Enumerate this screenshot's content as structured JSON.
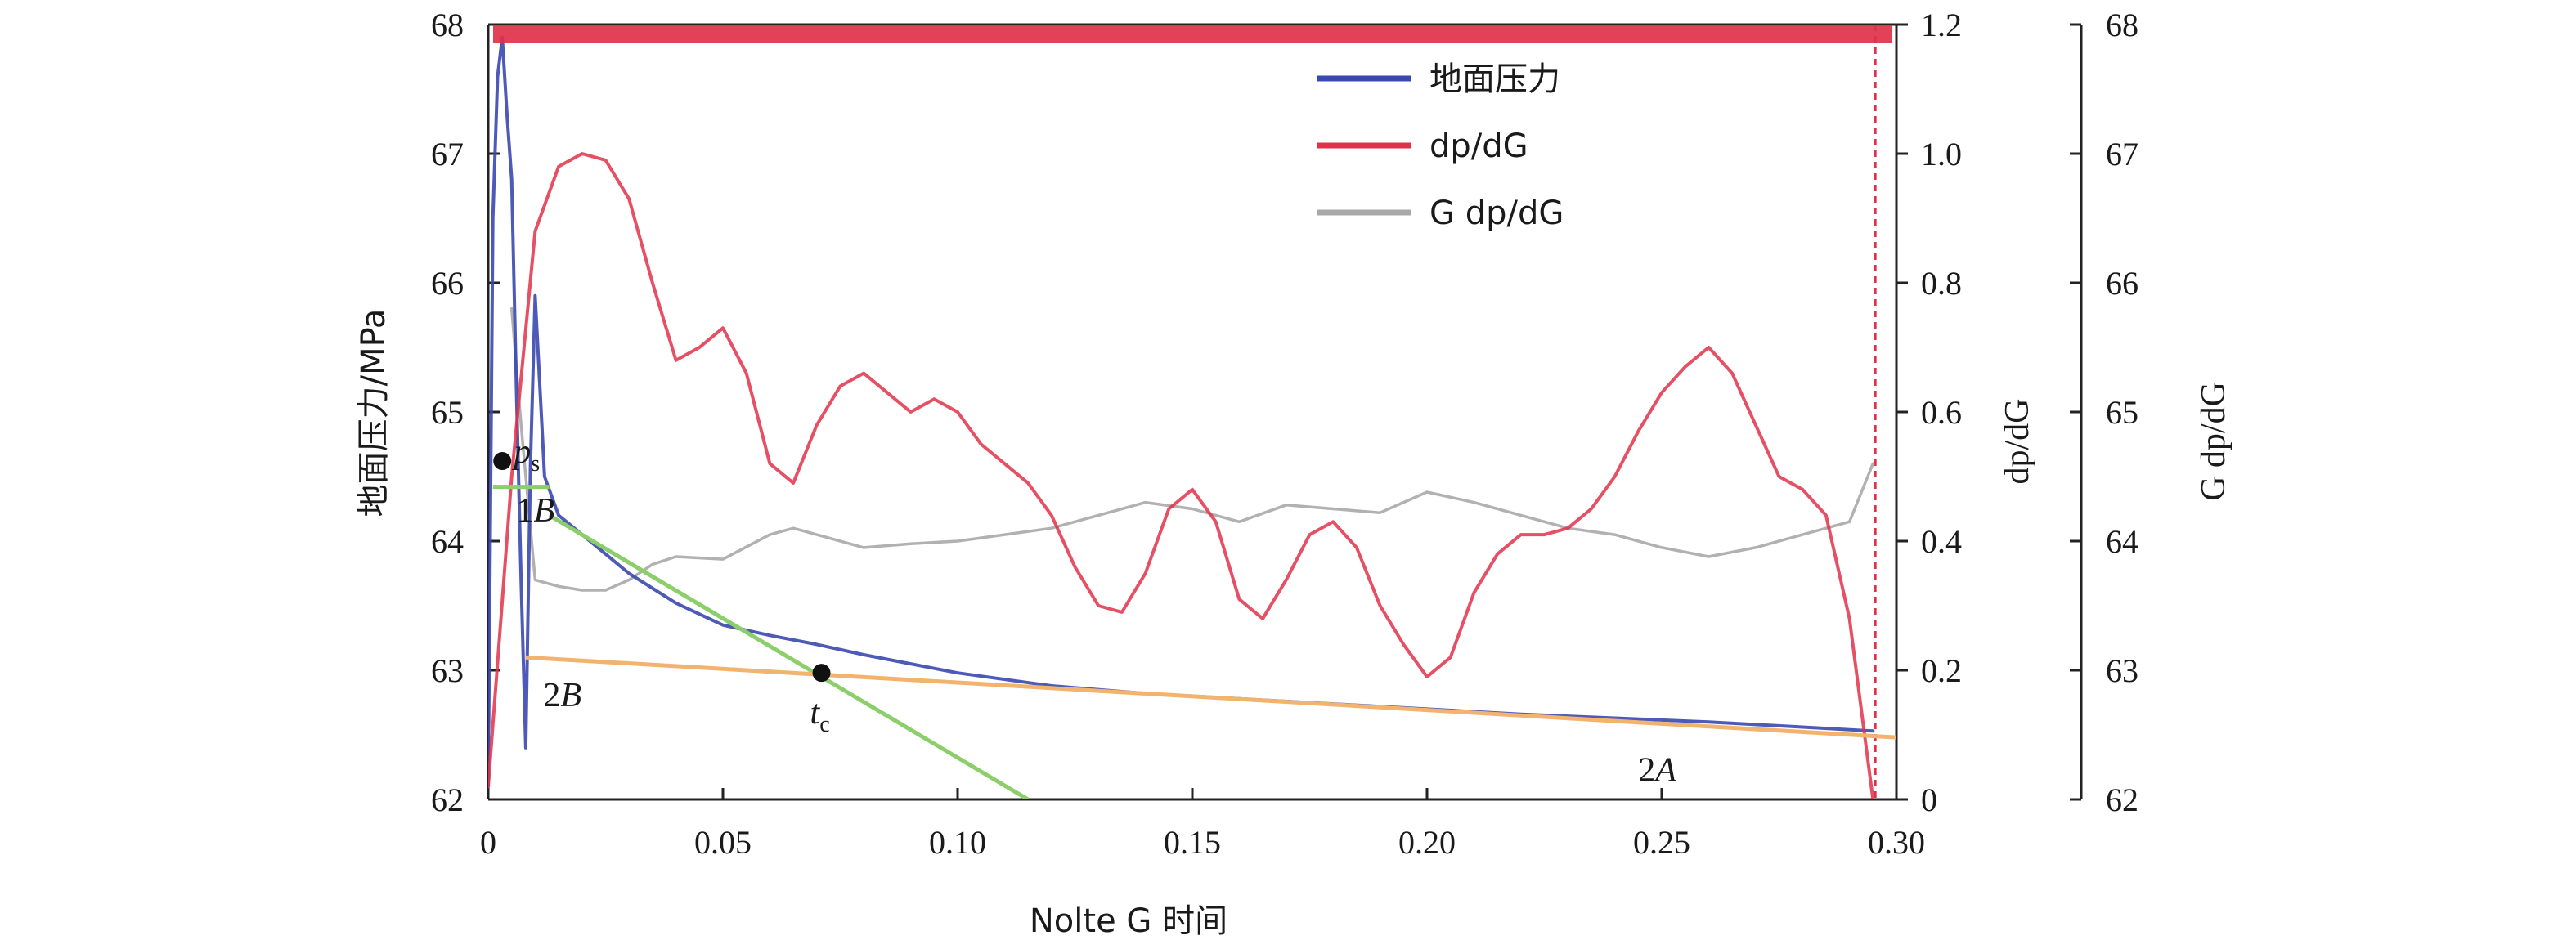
{
  "chart_data": {
    "type": "line",
    "xlabel": "Nolte G 时间",
    "ylabel_left": "地面压力/MPa",
    "ylabel_right1": "dp/dG",
    "ylabel_right2": "G dp/dG",
    "xlim": [
      0,
      0.3
    ],
    "ylim_left": [
      62,
      68
    ],
    "ylim_right1": [
      0,
      1.2
    ],
    "ylim_right2": [
      62,
      68
    ],
    "x_ticks": [
      "0",
      "0.05",
      "0.10",
      "0.15",
      "0.20",
      "0.25",
      "0.30"
    ],
    "y_left_ticks": [
      "62",
      "63",
      "64",
      "65",
      "66",
      "67",
      "68"
    ],
    "y_right1_ticks": [
      "0",
      "0.2",
      "0.4",
      "0.6",
      "0.8",
      "1.0",
      "1.2"
    ],
    "y_right2_ticks": [
      "62",
      "63",
      "64",
      "65",
      "66",
      "67",
      "68"
    ],
    "legend": [
      "地面压力",
      "dp/dG",
      "G dp/dG"
    ],
    "legend_position": "top-right",
    "colors": {
      "pressure": "#3a48b0",
      "dpdg": "#e0314a",
      "gdpdg": "#a8a8a8",
      "tangent_green": "#8ccf6a",
      "tangent_orange": "#f2b36e",
      "marker": "#111111"
    },
    "series": [
      {
        "name": "地面压力",
        "axis": "left",
        "x": [
          0.0,
          0.001,
          0.002,
          0.003,
          0.004,
          0.005,
          0.006,
          0.007,
          0.008,
          0.009,
          0.01,
          0.012,
          0.015,
          0.02,
          0.03,
          0.04,
          0.05,
          0.06,
          0.07,
          0.08,
          0.09,
          0.1,
          0.12,
          0.14,
          0.16,
          0.18,
          0.2,
          0.22,
          0.24,
          0.26,
          0.28,
          0.295
        ],
        "y": [
          62.1,
          66.5,
          67.6,
          67.9,
          67.3,
          66.8,
          65.2,
          63.7,
          62.4,
          64.6,
          65.9,
          64.5,
          64.2,
          64.05,
          63.75,
          63.52,
          63.35,
          63.27,
          63.2,
          63.12,
          63.05,
          62.98,
          62.88,
          62.82,
          62.78,
          62.74,
          62.7,
          62.66,
          62.63,
          62.6,
          62.56,
          62.53
        ]
      },
      {
        "name": "dp/dG",
        "axis": "right1",
        "x": [
          0.0,
          0.005,
          0.01,
          0.015,
          0.02,
          0.025,
          0.03,
          0.035,
          0.04,
          0.045,
          0.05,
          0.055,
          0.06,
          0.065,
          0.07,
          0.075,
          0.08,
          0.085,
          0.09,
          0.095,
          0.1,
          0.105,
          0.11,
          0.115,
          0.12,
          0.125,
          0.13,
          0.135,
          0.14,
          0.145,
          0.15,
          0.155,
          0.16,
          0.165,
          0.17,
          0.175,
          0.18,
          0.185,
          0.19,
          0.195,
          0.2,
          0.205,
          0.21,
          0.215,
          0.22,
          0.225,
          0.23,
          0.235,
          0.24,
          0.245,
          0.25,
          0.255,
          0.26,
          0.265,
          0.27,
          0.275,
          0.28,
          0.285,
          0.29,
          0.295
        ],
        "y": [
          0.02,
          0.5,
          0.88,
          0.98,
          1.0,
          0.99,
          0.93,
          0.8,
          0.68,
          0.7,
          0.73,
          0.66,
          0.52,
          0.49,
          0.58,
          0.64,
          0.66,
          0.63,
          0.6,
          0.62,
          0.6,
          0.55,
          0.52,
          0.49,
          0.44,
          0.36,
          0.3,
          0.29,
          0.35,
          0.45,
          0.48,
          0.43,
          0.31,
          0.28,
          0.34,
          0.41,
          0.43,
          0.39,
          0.3,
          0.24,
          0.19,
          0.22,
          0.32,
          0.38,
          0.41,
          0.41,
          0.42,
          0.45,
          0.5,
          0.57,
          0.63,
          0.67,
          0.7,
          0.66,
          0.58,
          0.5,
          0.48,
          0.44,
          0.28,
          0.0
        ]
      },
      {
        "name": "G dp/dG",
        "axis": "right2",
        "x": [
          0.005,
          0.007,
          0.01,
          0.015,
          0.02,
          0.025,
          0.03,
          0.035,
          0.04,
          0.05,
          0.06,
          0.065,
          0.07,
          0.08,
          0.09,
          0.1,
          0.11,
          0.12,
          0.13,
          0.14,
          0.15,
          0.16,
          0.17,
          0.18,
          0.19,
          0.2,
          0.21,
          0.22,
          0.23,
          0.24,
          0.25,
          0.26,
          0.27,
          0.28,
          0.29,
          0.295
        ],
        "y": [
          65.8,
          64.9,
          63.7,
          63.65,
          63.62,
          63.62,
          63.7,
          63.82,
          63.88,
          63.86,
          64.05,
          64.1,
          64.05,
          63.95,
          63.98,
          64.0,
          64.05,
          64.1,
          64.2,
          64.3,
          64.25,
          64.15,
          64.28,
          64.25,
          64.22,
          64.38,
          64.3,
          64.2,
          64.1,
          64.05,
          63.95,
          63.88,
          63.95,
          64.05,
          64.15,
          64.6
        ]
      }
    ],
    "reference_lines": [
      {
        "label": "1B",
        "x": [
          0.013,
          0.115
        ],
        "y": [
          64.2,
          62.0
        ]
      },
      {
        "label": "2B",
        "x": [
          0.008,
          0.3
        ],
        "y": [
          63.1,
          62.48
        ]
      },
      {
        "label": "2A",
        "x": [
          0.008,
          0.3
        ],
        "y": [
          63.1,
          62.48
        ]
      }
    ],
    "annotations": {
      "ps": {
        "text": "p",
        "sub": "s",
        "x": 0.003,
        "y": 64.62
      },
      "tc": {
        "text": "t",
        "sub": "c",
        "x": 0.071,
        "y": 62.98
      },
      "label_1B": {
        "text": "1B",
        "x": 0.006,
        "y": 64.28
      },
      "label_2B": {
        "text": "2B",
        "x": 0.01,
        "y": 62.9
      },
      "label_2A": {
        "text": "2A",
        "x": 0.245,
        "y": 62.32
      }
    }
  }
}
